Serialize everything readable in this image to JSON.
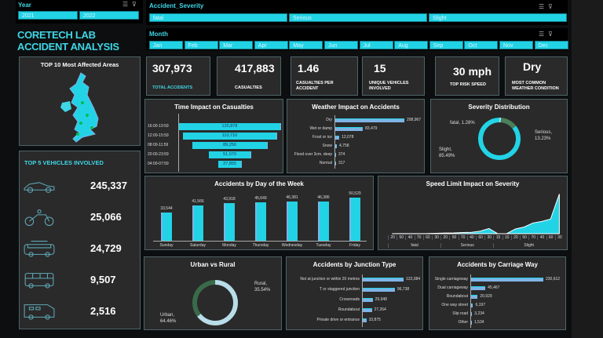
{
  "filters": {
    "year": {
      "label": "Year",
      "items": [
        "2021",
        "2022"
      ]
    },
    "severity": {
      "label": "Accident_Severity",
      "items": [
        "fatal",
        "Serious",
        "Slight"
      ]
    },
    "month": {
      "label": "Month",
      "items": [
        "Jan",
        "Feb",
        "Mar",
        "Apr",
        "May",
        "Jun",
        "Jul",
        "Aug",
        "Sep",
        "Oct",
        "Nov",
        "Dec"
      ]
    }
  },
  "title": "CORETECH LAB ACCIDENT ANALYSIS",
  "kpis": [
    {
      "value": "307,973",
      "label": "TOTAL ACCIDENTS"
    },
    {
      "value": "417,883",
      "label": "CASUALTIES"
    },
    {
      "value": "1.46",
      "label": "CASUALTIES PER ACCIDENT"
    },
    {
      "value": "15",
      "label": "UNIQUE VEHICLES INVOLVED"
    },
    {
      "value": "30 mph",
      "label": "TOP RISK SPEED"
    },
    {
      "value": "Dry",
      "label": "MOST COMMON WEATHER CONDITION"
    }
  ],
  "map": {
    "title": "TOP 10 Most Affected Areas"
  },
  "vehicles": {
    "title": "TOP 5 VEHICLES INVOLVED",
    "items": [
      {
        "icon": "car-icon",
        "value": "245,337"
      },
      {
        "icon": "motorcycle-icon",
        "value": "25,066"
      },
      {
        "icon": "van-icon",
        "value": "24,729"
      },
      {
        "icon": "bus-icon",
        "value": "9,507"
      },
      {
        "icon": "motorhome-icon",
        "value": "2,516"
      }
    ]
  },
  "colors": {
    "accent": "#22d3e6",
    "bar_alt": "#7fb3e6",
    "panel": "#2a2a2a"
  },
  "chart_data": [
    {
      "id": "time",
      "type": "bar",
      "orientation": "funnel",
      "title": "Time Impact on Casualties",
      "categories": [
        "16:00-19:59",
        "12:00-15:59",
        "08:00-11:59",
        "20:00-23:59",
        "04:00-07:59"
      ],
      "values": [
        120878,
        110710,
        89256,
        51070,
        27855
      ],
      "labels": [
        "120,878",
        "110,710",
        "89,256",
        "51,070",
        "27,855"
      ]
    },
    {
      "id": "weather",
      "type": "bar",
      "orientation": "horizontal",
      "title": "Weather  Impact on Accidents",
      "categories": [
        "Dry",
        "Wet or damp",
        "Frost or ice",
        "Snow",
        "Flood over 3cm. deep",
        "Normal"
      ],
      "values": [
        208967,
        83479,
        12078,
        4758,
        374,
        317
      ],
      "labels": [
        "208,967",
        "83,479",
        "12,078",
        "4,758",
        "374",
        "317"
      ]
    },
    {
      "id": "severity",
      "type": "pie",
      "title": "Severity Distribution",
      "slices": [
        {
          "name": "fatal",
          "value": 1.28,
          "label": "fatal, 1.28%"
        },
        {
          "name": "Serious",
          "value": 13.23,
          "label": "Serious, 13.23%"
        },
        {
          "name": "Slight",
          "value": 85.49,
          "label": "Slight, 85.49%"
        }
      ]
    },
    {
      "id": "day",
      "type": "bar",
      "title": "Accidents by Day of the Week",
      "categories": [
        "Sunday",
        "Saturday",
        "Monday",
        "Thursday",
        "Wednesday",
        "Tuesday",
        "Friday"
      ],
      "values": [
        33544,
        41566,
        43918,
        45649,
        46381,
        46386,
        50529
      ],
      "labels": [
        "33,544",
        "41,566",
        "43,918",
        "45,649",
        "46,381",
        "46,386",
        "50,529"
      ]
    },
    {
      "id": "speed",
      "type": "area",
      "title": "Speed Limit Impact on Severity",
      "groups": [
        {
          "name": "fatal",
          "x": [
            "20",
            "50",
            "40",
            "70",
            "60",
            "30"
          ],
          "values": [
            200,
            300,
            450,
            600,
            700,
            1900
          ]
        },
        {
          "name": "Serious",
          "x": [
            "20",
            "50",
            "70",
            "40",
            "60",
            "30"
          ],
          "values": [
            3000,
            3500,
            5500,
            6500,
            12000,
            24000
          ]
        },
        {
          "name": "Slight",
          "x": [
            "15",
            "10",
            "20",
            "50",
            "70",
            "40",
            "60",
            "30"
          ],
          "values": [
            10,
            20,
            22000,
            31000,
            50000,
            57000,
            68000,
            185000
          ]
        }
      ]
    },
    {
      "id": "urban",
      "type": "pie",
      "title": "Urban vs Rural",
      "slices": [
        {
          "name": "Urban",
          "value": 64.46,
          "label": "Urban, 64.46%"
        },
        {
          "name": "Rural",
          "value": 35.54,
          "label": "Rural, 35.54%"
        }
      ]
    },
    {
      "id": "junction",
      "type": "bar",
      "orientation": "horizontal",
      "title": "Accidents by Junction Type",
      "categories": [
        "Not at junction or within 20 metres",
        "T or staggered junction",
        "Crossroads",
        "Roundabout",
        "Private drive or entrance"
      ],
      "values": [
        123084,
        96738,
        29948,
        27264,
        10875
      ],
      "labels": [
        "123,084",
        "96,738",
        "29,948",
        "27,264",
        "10,875"
      ]
    },
    {
      "id": "carriage",
      "type": "bar",
      "orientation": "horizontal",
      "title": "Accidents by Carriage Way",
      "categories": [
        "Single carriageway",
        "Dual carriageway",
        "Roundabout",
        "One way street",
        "Slip road",
        "Other"
      ],
      "values": [
        230612,
        45467,
        20929,
        6197,
        3234,
        1534
      ],
      "labels": [
        "230,612",
        "45,467",
        "20,929",
        "6,197",
        "3,234",
        "1,534"
      ]
    }
  ]
}
